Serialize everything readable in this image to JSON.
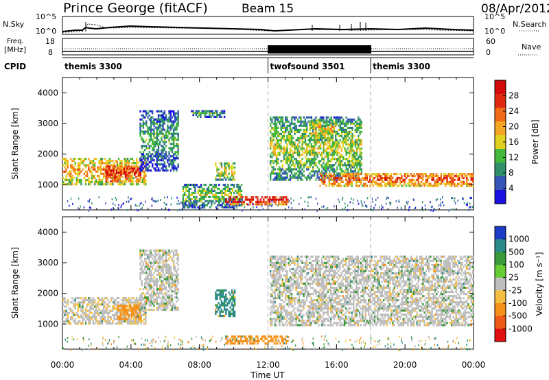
{
  "header": {
    "station": "Prince George (fitACF)",
    "beam": "Beam 15",
    "date": "08/Apr/2012"
  },
  "strip_labels": {
    "nsky": "N.Sky",
    "nsearch": "N.Search",
    "freq_line1": "Freq.",
    "freq_line2": "[MHz]",
    "nave": "Nave",
    "cpid": "CPID",
    "sky_ticks_left": [
      "10^5",
      "10^0"
    ],
    "sky_ticks_right": [
      "10^5",
      "10^0"
    ],
    "freq_ticks": [
      "18",
      "8"
    ],
    "nave_ticks": [
      "60",
      "0"
    ]
  },
  "cpid_segments": [
    {
      "label": "themis 3300",
      "start_hour": 0,
      "end_hour": 12
    },
    {
      "label": "twofsound 3501",
      "start_hour": 12,
      "end_hour": 18
    },
    {
      "label": "themis 3300",
      "start_hour": 18,
      "end_hour": 24
    }
  ],
  "x_axis": {
    "label": "Time UT",
    "range_hours": [
      0,
      24
    ],
    "tick_labels": [
      "00:00",
      "04:00",
      "08:00",
      "12:00",
      "16:00",
      "20:00",
      "00:00"
    ]
  },
  "panels": {
    "power": {
      "ylabel": "Slant Range [km]",
      "yticks": [
        "1000",
        "2000",
        "3000",
        "4000"
      ],
      "cbar_label": "Power [dB]",
      "cbar_ticks": [
        "4",
        "8",
        "12",
        "16",
        "20",
        "24",
        "28"
      ],
      "cbar_colors": [
        "#1a10e0",
        "#3555b8",
        "#2f8f6a",
        "#44b83a",
        "#e0d21e",
        "#f5a622",
        "#f06a18",
        "#e02a10",
        "#d20a0a"
      ]
    },
    "velocity": {
      "ylabel": "Slant Range [km]",
      "yticks": [
        "1000",
        "2000",
        "3000",
        "4000"
      ],
      "cbar_label": "Velocity [m s⁻¹]",
      "cbar_ticks": [
        "1000",
        "500",
        "100",
        "25",
        "-25",
        "-100",
        "-500",
        "-1000"
      ],
      "cbar_colors": [
        "#1c3cc8",
        "#2a8a8a",
        "#3a9a3a",
        "#66cc33",
        "#bebebe",
        "#f5c040",
        "#f59018",
        "#f05a18",
        "#e01010"
      ]
    }
  },
  "chart_data": [
    {
      "type": "heatmap",
      "title": "Power",
      "x_unit": "hours UT",
      "xlim": [
        0,
        24
      ],
      "ylim": [
        180,
        4500
      ],
      "colorbar_range_db": [
        0,
        30
      ],
      "regions": [
        {
          "t0": 0.0,
          "t1": 4.9,
          "r0": 1050,
          "r1": 1950,
          "level": 0.55
        },
        {
          "t0": 2.5,
          "t1": 4.6,
          "r0": 1150,
          "r1": 1700,
          "level": 0.85
        },
        {
          "t0": 4.5,
          "t1": 6.8,
          "r0": 1500,
          "r1": 3500,
          "level": 0.2
        },
        {
          "t0": 7.5,
          "t1": 9.5,
          "r0": 3250,
          "r1": 3500,
          "level": 0.2
        },
        {
          "t0": 8.9,
          "t1": 10.1,
          "r0": 1200,
          "r1": 1800,
          "level": 0.45
        },
        {
          "t0": 7.0,
          "t1": 10.5,
          "r0": 300,
          "r1": 1100,
          "level": 0.3
        },
        {
          "t0": 9.5,
          "t1": 13.2,
          "r0": 400,
          "r1": 700,
          "level": 0.85
        },
        {
          "t0": 12.1,
          "t1": 17.5,
          "r0": 1200,
          "r1": 3300,
          "level": 0.35
        },
        {
          "t0": 14.4,
          "t1": 16.0,
          "r0": 2500,
          "r1": 3200,
          "level": 0.45
        },
        {
          "t0": 15.0,
          "t1": 24.0,
          "r0": 1000,
          "r1": 1450,
          "level": 0.7
        }
      ]
    },
    {
      "type": "heatmap",
      "title": "Velocity",
      "x_unit": "hours UT",
      "xlim": [
        0,
        24
      ],
      "ylim": [
        180,
        4500
      ],
      "colorbar_range_m_s": [
        -1000,
        1000
      ],
      "regions": [
        {
          "t0": 0.0,
          "t1": 4.9,
          "r0": 1050,
          "r1": 1950,
          "velocity": -10
        },
        {
          "t0": 3.2,
          "t1": 4.6,
          "r0": 1200,
          "r1": 1700,
          "velocity": -180
        },
        {
          "t0": 4.5,
          "t1": 6.8,
          "r0": 1500,
          "r1": 3500,
          "velocity": 0
        },
        {
          "t0": 8.9,
          "t1": 10.1,
          "r0": 1300,
          "r1": 2200,
          "velocity": 120
        },
        {
          "t0": 9.5,
          "t1": 13.2,
          "r0": 400,
          "r1": 700,
          "velocity": -200
        },
        {
          "t0": 12.1,
          "t1": 24.0,
          "r0": 1000,
          "r1": 3300,
          "velocity": 0
        }
      ]
    }
  ]
}
